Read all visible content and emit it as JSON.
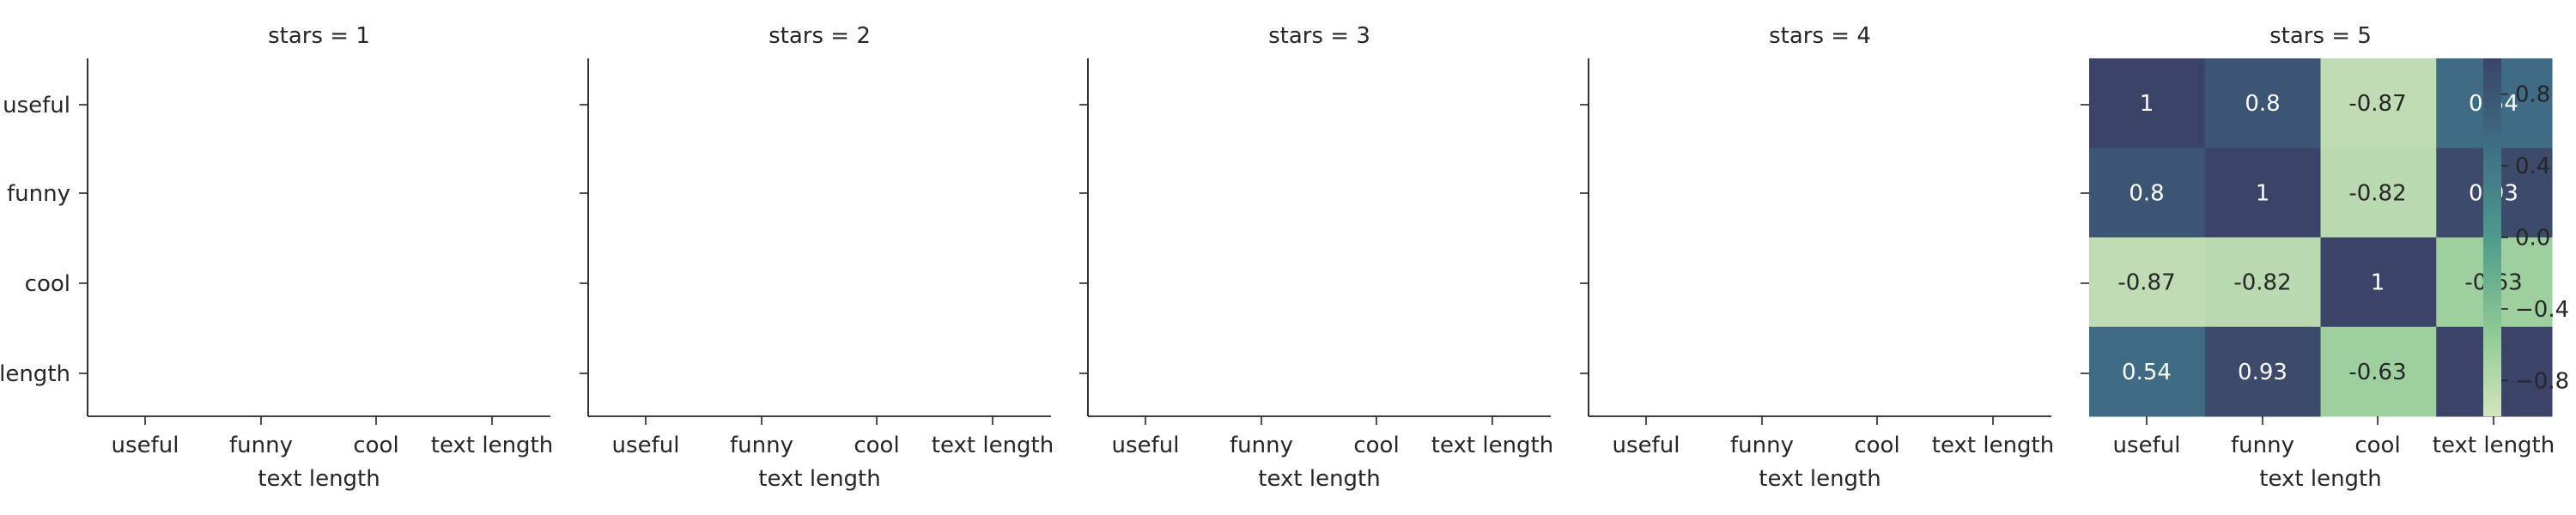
{
  "chart_data": {
    "type": "heatmap",
    "facet_variable": "stars",
    "panels": [
      {
        "title": "stars = 1",
        "xlabel": "text length",
        "has_data": false
      },
      {
        "title": "stars = 2",
        "xlabel": "text length",
        "has_data": false
      },
      {
        "title": "stars = 3",
        "xlabel": "text length",
        "has_data": false
      },
      {
        "title": "stars = 4",
        "xlabel": "text length",
        "has_data": false
      },
      {
        "title": "stars = 5",
        "xlabel": "text length",
        "has_data": true
      }
    ],
    "row_labels": [
      "useful",
      "funny",
      "cool",
      "text length"
    ],
    "col_labels": [
      "useful",
      "funny",
      "cool",
      "text length"
    ],
    "matrix": [
      [
        1,
        0.8,
        -0.87,
        0.54
      ],
      [
        0.8,
        1,
        -0.82,
        0.93
      ],
      [
        -0.87,
        -0.82,
        1,
        -0.63
      ],
      [
        0.54,
        0.93,
        -0.63,
        1
      ]
    ],
    "cell_labels": [
      [
        "1",
        "0.8",
        "-0.87",
        "0.54"
      ],
      [
        "0.8",
        "1",
        "-0.82",
        "0.93"
      ],
      [
        "-0.87",
        "-0.82",
        "1",
        "-0.63"
      ],
      [
        "0.54",
        "0.93",
        "-0.63",
        "1"
      ]
    ],
    "colorbar": {
      "range": [
        -1,
        1
      ],
      "ticks": [
        -0.8,
        -0.4,
        0.0,
        0.4,
        0.8
      ],
      "tick_labels": [
        "−0.8",
        "−0.4",
        "0.0",
        "0.4",
        "0.8"
      ]
    },
    "colormap": [
      "#d3e4bf",
      "#8bc794",
      "#4e9a8d",
      "#3f6f86",
      "#3b4468"
    ]
  }
}
